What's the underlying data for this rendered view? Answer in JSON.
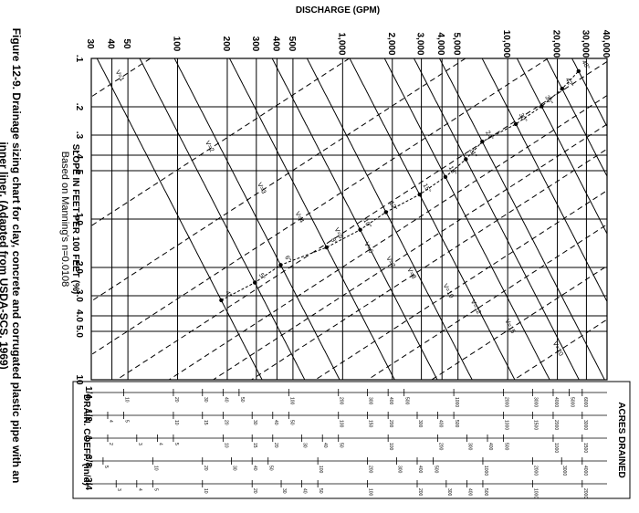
{
  "caption": {
    "line1": "Figure 12-9. Drainage sizing chart for clay, concrete and corrugated plastic pipe with an",
    "line2": "inner liner. (Adapted from USDA-SCS, 1969)"
  },
  "note": "Based on Manning's n=0.0108",
  "acres_label": "ACRES DRAINED",
  "drain_coeff_label": "DRAIN. COEFF. (in/d)",
  "drain_coeffs": [
    "1/4",
    "1/2",
    "1",
    "3/8",
    "3/4"
  ],
  "chart_data": {
    "type": "line",
    "xlabel": "DISCHARGE (GPM)",
    "ylabel": "SLOPE IN FEET PER 100 FEET (%)",
    "x_scale": "log",
    "y_scale": "log",
    "xlim": [
      30,
      40000
    ],
    "ylim": [
      0.1,
      10
    ],
    "x_ticks": [
      {
        "value": 30,
        "label": "30"
      },
      {
        "value": 40,
        "label": "40"
      },
      {
        "value": 50,
        "label": "50"
      },
      {
        "value": 100,
        "label": "100"
      },
      {
        "value": 200,
        "label": "200"
      },
      {
        "value": 300,
        "label": "300"
      },
      {
        "value": 400,
        "label": "400"
      },
      {
        "value": 500,
        "label": "500"
      },
      {
        "value": 1000,
        "label": "1,000"
      },
      {
        "value": 2000,
        "label": "2,000"
      },
      {
        "value": 3000,
        "label": "3,000"
      },
      {
        "value": 4000,
        "label": "4,000"
      },
      {
        "value": 5000,
        "label": "5,000"
      },
      {
        "value": 10000,
        "label": "10,000"
      },
      {
        "value": 20000,
        "label": "20,000"
      },
      {
        "value": 30000,
        "label": "30,000"
      },
      {
        "value": 40000,
        "label": "40,000"
      }
    ],
    "y_ticks": [
      {
        "value": 0.1,
        "label": ".1"
      },
      {
        "value": 0.2,
        "label": ".2"
      },
      {
        "value": 0.3,
        "label": ".3"
      },
      {
        "value": 0.4,
        "label": ".4"
      },
      {
        "value": 0.5,
        "label": ".5"
      },
      {
        "value": 1,
        "label": "1.0"
      },
      {
        "value": 2,
        "label": "2.0"
      },
      {
        "value": 3,
        "label": "3.0"
      },
      {
        "value": 4,
        "label": "4.0"
      },
      {
        "value": 5,
        "label": "5.0"
      },
      {
        "value": 10,
        "label": "10"
      }
    ],
    "velocity_lines": [
      {
        "label": "V=1",
        "v": 1
      },
      {
        "label": "V=2",
        "v": 2
      },
      {
        "label": "V=3",
        "v": 3
      },
      {
        "label": "V=4",
        "v": 4
      },
      {
        "label": "V=5",
        "v": 5
      },
      {
        "label": "V=6",
        "v": 6
      },
      {
        "label": "V=7",
        "v": 7
      },
      {
        "label": "V=8",
        "v": 8
      },
      {
        "label": "V=10",
        "v": 10
      },
      {
        "label": "V=12",
        "v": 12
      },
      {
        "label": "V=15",
        "v": 15
      },
      {
        "label": "V=20",
        "v": 20
      }
    ],
    "pipe_sizes": [
      {
        "label": "4\"",
        "d": 4
      },
      {
        "label": "5\"",
        "d": 5
      },
      {
        "label": "6\"",
        "d": 6
      },
      {
        "label": "8\"",
        "d": 8
      },
      {
        "label": "10\"",
        "d": 10
      },
      {
        "label": "12\"",
        "d": 12
      },
      {
        "label": "15\"",
        "d": 15
      },
      {
        "label": "18\"",
        "d": 18
      },
      {
        "label": "21\"",
        "d": 21
      },
      {
        "label": "24\"",
        "d": 24
      },
      {
        "label": "30\"",
        "d": 30
      },
      {
        "label": "36\"",
        "d": 36
      },
      {
        "label": "42\"",
        "d": 42
      },
      {
        "label": "48\"",
        "d": 48
      }
    ],
    "manning_n": 0.0108,
    "acres_scales": [
      {
        "coeff": "1/4",
        "acres": [
          5,
          10,
          20,
          30,
          40,
          50,
          100,
          200,
          300,
          400,
          500,
          1000,
          2000,
          3000,
          4000,
          5000,
          6000
        ]
      },
      {
        "coeff": "1/2",
        "acres": [
          3,
          4,
          5,
          10,
          15,
          20,
          30,
          40,
          50,
          100,
          150,
          200,
          300,
          400,
          500,
          1000,
          1500,
          2000,
          3000
        ]
      },
      {
        "coeff": "1",
        "acres": [
          1,
          2,
          3,
          4,
          5,
          10,
          15,
          20,
          30,
          40,
          50,
          100,
          200,
          300,
          400,
          500,
          1000,
          1500
        ]
      },
      {
        "coeff": "3/8",
        "acres": [
          3,
          4,
          5,
          10,
          20,
          30,
          40,
          50,
          100,
          200,
          300,
          400,
          500,
          1000,
          2000,
          3000,
          4000
        ]
      },
      {
        "coeff": "3/4",
        "acres": [
          2,
          3,
          4,
          5,
          10,
          20,
          30,
          40,
          50,
          100,
          200,
          300,
          400,
          500,
          1000,
          2000
        ]
      }
    ]
  }
}
